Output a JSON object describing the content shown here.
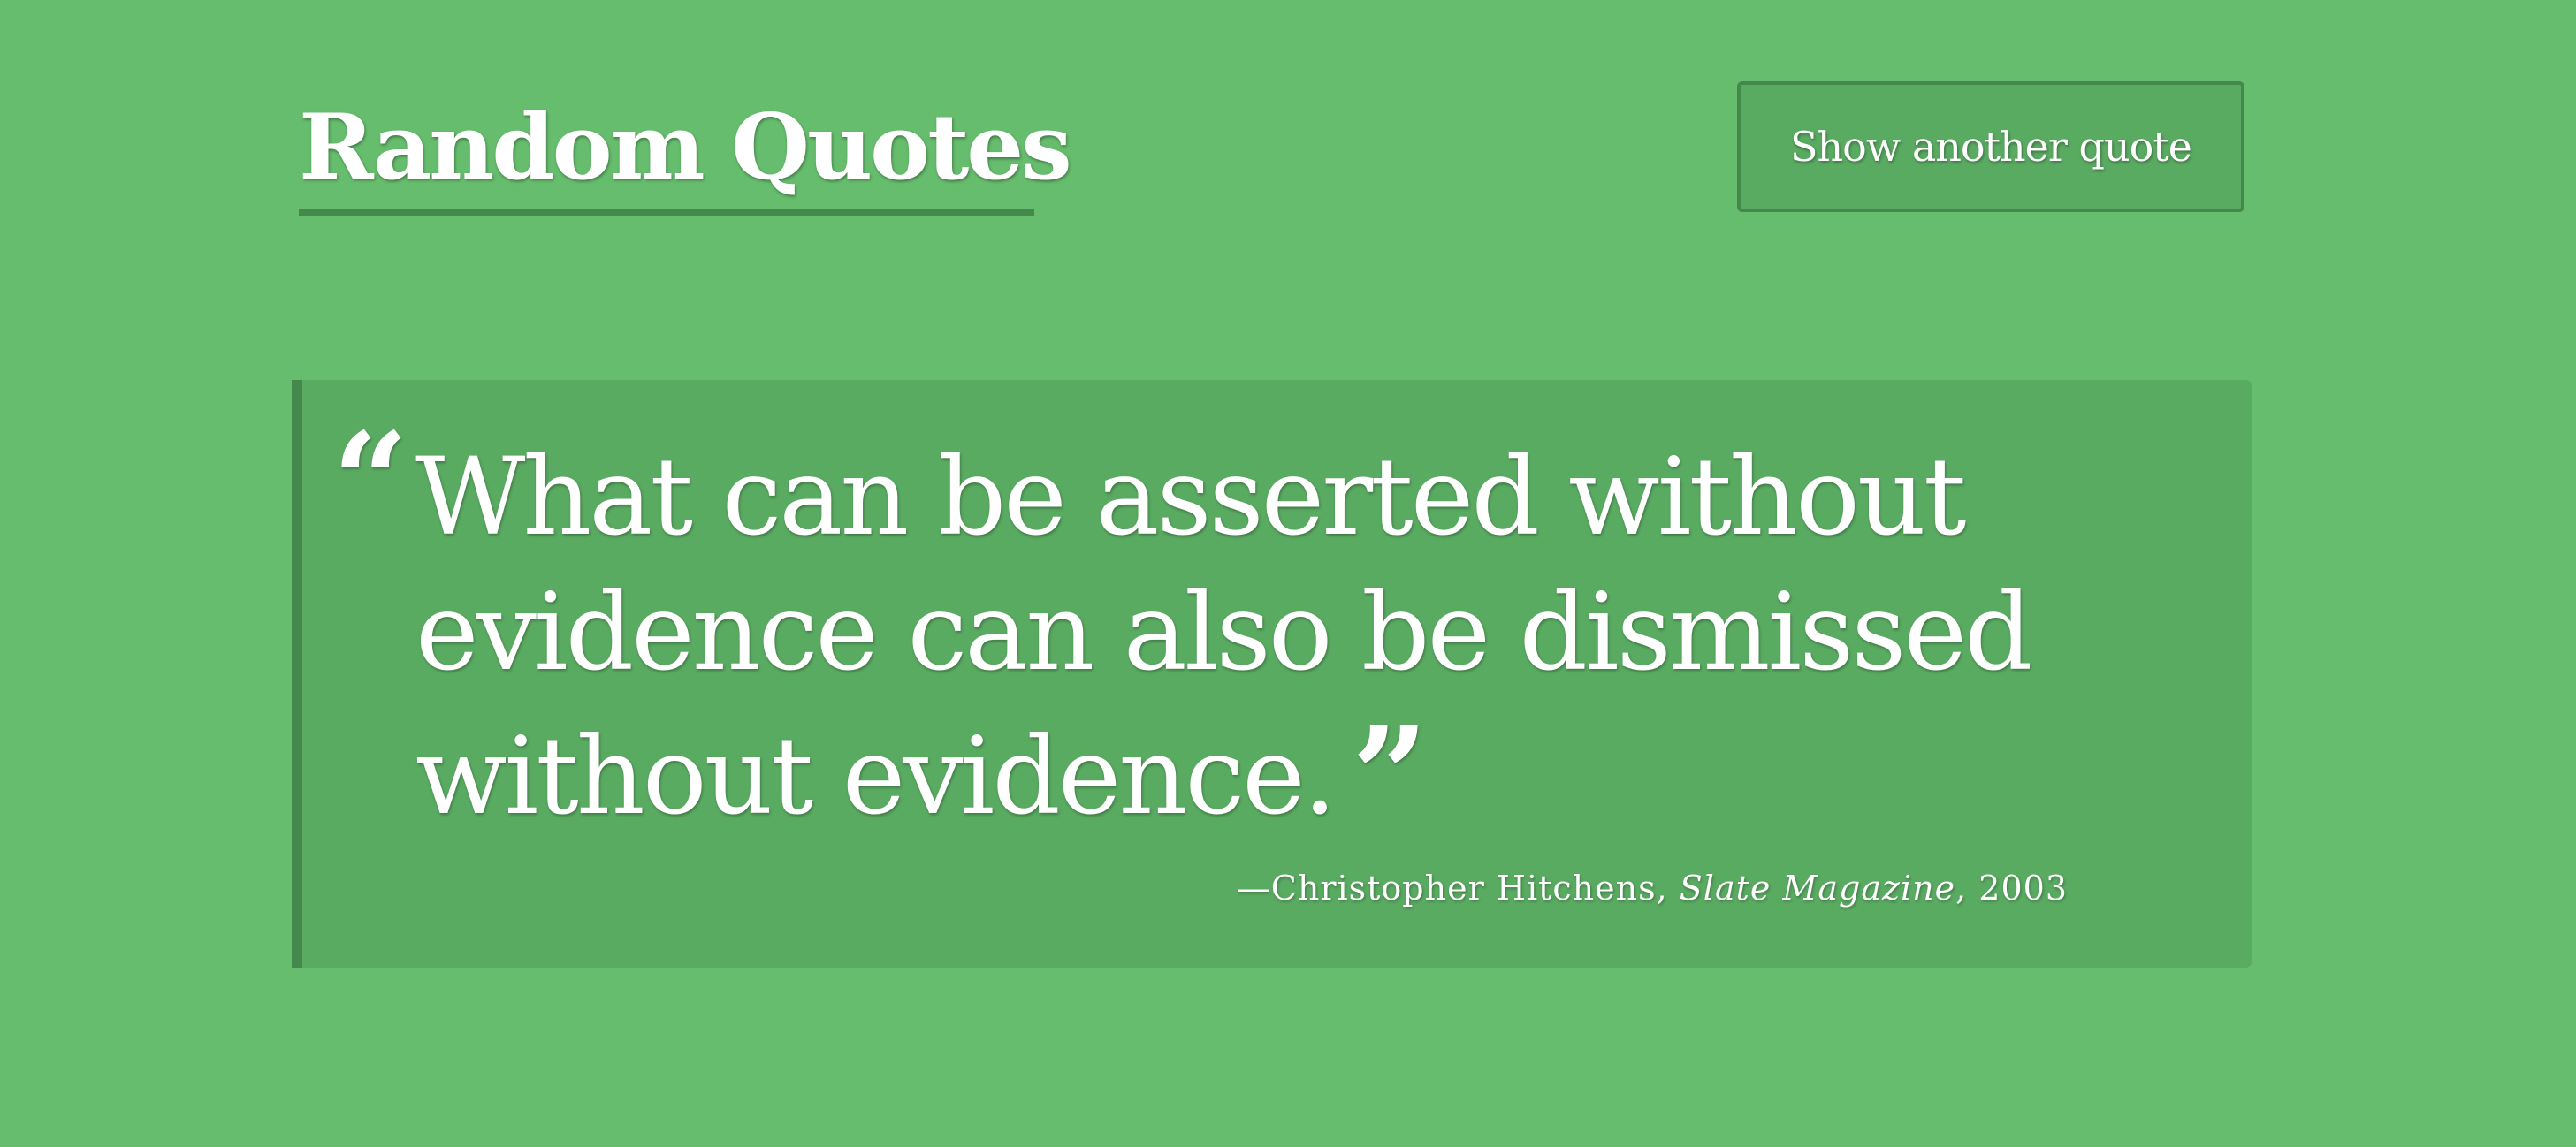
{
  "header": {
    "title": "Random Quotes",
    "button_label": "Show another quote"
  },
  "quote": {
    "open_mark": "“",
    "text": "What can be asserted without evidence can also be dismissed without evidence.",
    "close_mark": "”",
    "attribution_prefix": "—Christopher Hitchens, ",
    "source": "Slate Magazine",
    "year_suffix": ", 2003"
  },
  "colors": {
    "background": "#66bd6d",
    "card": "#5aab62",
    "accent_border": "#44894b",
    "text": "#ffffff"
  }
}
